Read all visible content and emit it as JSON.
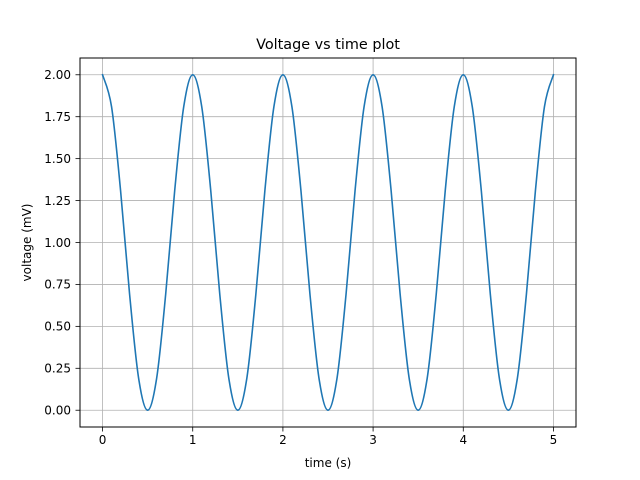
{
  "chart_data": {
    "type": "line",
    "title": "Voltage vs time plot",
    "xlabel": "time (s)",
    "ylabel": "voltage (mV)",
    "xlim": [
      -0.25,
      5.25
    ],
    "ylim": [
      -0.1,
      2.1
    ],
    "x_ticks": [
      0,
      1,
      2,
      3,
      4,
      5
    ],
    "x_tick_labels": [
      "0",
      "1",
      "2",
      "3",
      "4",
      "5"
    ],
    "y_ticks": [
      0,
      0.25,
      0.5,
      0.75,
      1.0,
      1.25,
      1.5,
      1.75,
      2.0
    ],
    "y_tick_labels": [
      "0.00",
      "0.25",
      "0.50",
      "0.75",
      "1.00",
      "1.25",
      "1.50",
      "1.75",
      "2.00"
    ],
    "grid": true,
    "series": [
      {
        "color": "#1f77b4",
        "x": [
          0,
          0.1,
          0.2,
          0.3,
          0.4,
          0.5,
          0.6,
          0.7,
          0.8,
          0.9,
          1.0,
          1.1,
          1.2,
          1.3,
          1.4,
          1.5,
          1.6,
          1.7,
          1.8,
          1.9,
          2.0,
          2.1,
          2.2,
          2.3,
          2.4,
          2.5,
          2.6,
          2.7,
          2.8,
          2.9,
          3.0,
          3.1,
          3.2,
          3.3,
          3.4,
          3.5,
          3.6,
          3.7,
          3.8,
          3.9,
          4.0,
          4.1,
          4.2,
          4.3,
          4.4,
          4.5,
          4.6,
          4.7,
          4.8,
          4.9,
          5.0
        ],
        "y": [
          2.0,
          1.809,
          1.309,
          0.691,
          0.191,
          0.0,
          0.191,
          0.691,
          1.309,
          1.809,
          2.0,
          1.809,
          1.309,
          0.691,
          0.191,
          0.0,
          0.191,
          0.691,
          1.309,
          1.809,
          2.0,
          1.809,
          1.309,
          0.691,
          0.191,
          0.0,
          0.191,
          0.691,
          1.309,
          1.809,
          2.0,
          1.809,
          1.309,
          0.691,
          0.191,
          0.0,
          0.191,
          0.691,
          1.309,
          1.809,
          2.0,
          1.809,
          1.309,
          0.691,
          0.191,
          0.0,
          0.191,
          0.691,
          1.309,
          1.809,
          2.0
        ]
      }
    ]
  }
}
